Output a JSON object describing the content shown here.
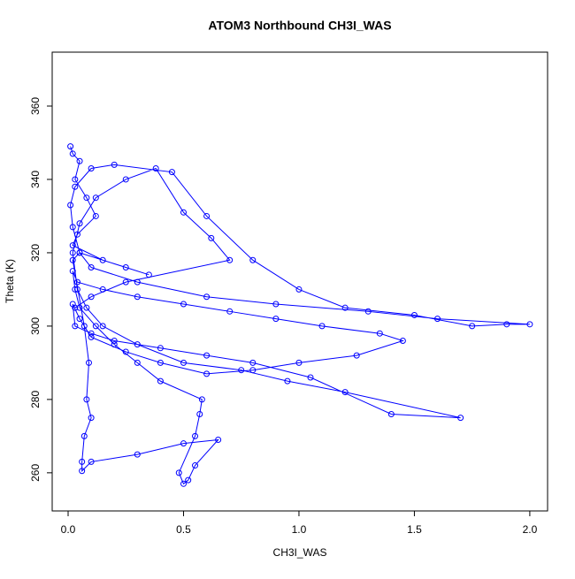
{
  "chart_data": {
    "type": "line",
    "title": "ATOM3 Northbound CH3I_WAS",
    "x_label": "CH3I_WAS",
    "y_label": "Theta (K)",
    "color": "#0000ff",
    "markers": true,
    "xlim": [
      -0.069,
      2.077
    ],
    "ylim": [
      249.6,
      374.7
    ],
    "xticks": [
      {
        "value": 0,
        "label": "0.0"
      },
      {
        "value": 0.5,
        "label": "0.5"
      },
      {
        "value": 1,
        "label": "1.0"
      },
      {
        "value": 1.5,
        "label": "1.5"
      },
      {
        "value": 2,
        "label": "2.0"
      }
    ],
    "yticks": [
      260,
      280,
      300,
      320,
      340,
      360
    ],
    "x": [
      0.01,
      0.02,
      0.05,
      0.03,
      0.08,
      0.12,
      0.04,
      0.02,
      0.15,
      0.25,
      0.35,
      0.05,
      0.02,
      0.01,
      0.03,
      0.1,
      0.2,
      0.45,
      0.6,
      0.8,
      1.0,
      1.2,
      1.5,
      1.75,
      1.9,
      2.0,
      1.6,
      1.3,
      0.9,
      0.6,
      0.3,
      0.1,
      0.05,
      0.02,
      0.07,
      0.09,
      0.08,
      0.1,
      0.07,
      0.06,
      0.06,
      0.1,
      0.3,
      0.5,
      0.65,
      0.55,
      0.52,
      0.5,
      0.48,
      0.55,
      0.57,
      0.58,
      0.4,
      0.3,
      0.2,
      0.12,
      0.05,
      0.03,
      0.02,
      0.04,
      0.15,
      0.3,
      0.5,
      0.7,
      0.9,
      1.1,
      1.35,
      1.45,
      1.25,
      1.0,
      0.8,
      0.6,
      0.4,
      0.25,
      0.1,
      0.05,
      0.02,
      0.03,
      0.1,
      0.2,
      0.4,
      0.6,
      0.8,
      1.05,
      1.4,
      1.7,
      1.2,
      0.95,
      0.75,
      0.5,
      0.3,
      0.15,
      0.08,
      0.04,
      0.02,
      0.05,
      0.12,
      0.25,
      0.38,
      0.5,
      0.62,
      0.7,
      0.25,
      0.1,
      0.03
    ],
    "series": [
      {
        "values": [
          349,
          347,
          345,
          340,
          335,
          330,
          325,
          322,
          318,
          316,
          314,
          320,
          327,
          333,
          338,
          343,
          344,
          342,
          330,
          318,
          310,
          305,
          303,
          300,
          300.5,
          300.5,
          302,
          304,
          306,
          308,
          312,
          316,
          320,
          318,
          300,
          290,
          280,
          275,
          270,
          263,
          260.5,
          263,
          265,
          268,
          269,
          262,
          258,
          257,
          260,
          270,
          276,
          280,
          285,
          290,
          295,
          300,
          305,
          310,
          315,
          312,
          310,
          308,
          306,
          304,
          302,
          300,
          298,
          296,
          292,
          290,
          288,
          287,
          290,
          293,
          297,
          302,
          306,
          300,
          298,
          296,
          294,
          292,
          290,
          286,
          276,
          275,
          282,
          285,
          288,
          290,
          295,
          300,
          305,
          310,
          320,
          328,
          335,
          340,
          343,
          331,
          324,
          318,
          312,
          308,
          305
        ]
      }
    ]
  }
}
